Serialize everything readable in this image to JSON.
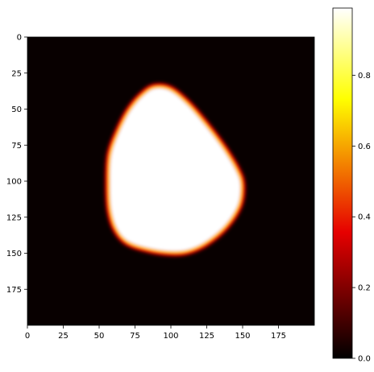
{
  "chart_data": {
    "type": "heatmap",
    "title": "",
    "xlabel": "",
    "ylabel": "",
    "x_range": [
      0,
      200
    ],
    "y_range": [
      0,
      200
    ],
    "x_ticks": [
      0,
      25,
      50,
      75,
      100,
      125,
      150,
      175
    ],
    "y_ticks": [
      0,
      25,
      50,
      75,
      100,
      125,
      150,
      175
    ],
    "y_axis_inverted": true,
    "colormap": "hot",
    "colormap_stops": [
      "#000000",
      "#e60000",
      "#ffff00",
      "#ffffff"
    ],
    "background_value": 0.0,
    "shape_value": 0.99,
    "value_range": [
      0.0,
      0.99
    ],
    "shape_boundary": [
      [
        90,
        35
      ],
      [
        100,
        37
      ],
      [
        112,
        47
      ],
      [
        125,
        62
      ],
      [
        137,
        78
      ],
      [
        146,
        93
      ],
      [
        149,
        103
      ],
      [
        147,
        117
      ],
      [
        138,
        131
      ],
      [
        125,
        142
      ],
      [
        112,
        148
      ],
      [
        100,
        149
      ],
      [
        85,
        147
      ],
      [
        70,
        142
      ],
      [
        62,
        133
      ],
      [
        58,
        120
      ],
      [
        57,
        103
      ],
      [
        58,
        82
      ],
      [
        64,
        65
      ],
      [
        72,
        50
      ],
      [
        82,
        39
      ]
    ],
    "colorbar": {
      "range": [
        0.0,
        0.99
      ],
      "ticks": [
        0.0,
        0.2,
        0.4,
        0.6,
        0.8
      ],
      "tick_labels": [
        "0.0",
        "0.2",
        "0.4",
        "0.6",
        "0.8"
      ]
    },
    "grid": false,
    "legend": "none"
  }
}
